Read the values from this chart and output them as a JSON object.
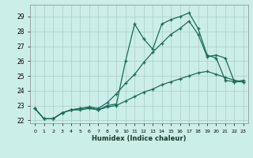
{
  "xlabel": "Humidex (Indice chaleur)",
  "background_color": "#cceee8",
  "grid_color": "#aaccc8",
  "line_color": "#1a6b5a",
  "xlim": [
    -0.5,
    23.5
  ],
  "ylim": [
    21.8,
    29.8
  ],
  "yticks": [
    22,
    23,
    24,
    25,
    26,
    27,
    28,
    29
  ],
  "xticks": [
    0,
    1,
    2,
    3,
    4,
    5,
    6,
    7,
    8,
    9,
    10,
    11,
    12,
    13,
    14,
    15,
    16,
    17,
    18,
    19,
    20,
    21,
    22,
    23
  ],
  "line1_x": [
    0,
    1,
    2,
    3,
    4,
    5,
    6,
    7,
    8,
    9,
    10,
    11,
    12,
    13,
    14,
    15,
    16,
    17,
    18,
    19,
    20,
    21,
    22,
    23
  ],
  "line1_y": [
    22.8,
    22.1,
    22.1,
    22.5,
    22.7,
    22.8,
    22.85,
    22.7,
    23.0,
    23.1,
    26.0,
    28.5,
    27.5,
    26.8,
    28.5,
    28.8,
    29.0,
    29.25,
    28.2,
    26.4,
    26.2,
    24.7,
    24.6,
    24.7
  ],
  "line2_x": [
    0,
    1,
    2,
    3,
    4,
    5,
    6,
    7,
    8,
    9,
    10,
    11,
    12,
    13,
    14,
    15,
    16,
    17,
    18,
    19,
    20,
    21,
    22,
    23
  ],
  "line2_y": [
    22.8,
    22.1,
    22.1,
    22.5,
    22.7,
    22.8,
    22.9,
    22.8,
    23.2,
    23.8,
    24.5,
    25.1,
    25.9,
    26.6,
    27.2,
    27.8,
    28.2,
    28.7,
    27.8,
    26.3,
    26.4,
    26.2,
    24.6,
    24.6
  ],
  "line3_x": [
    0,
    1,
    2,
    3,
    4,
    5,
    6,
    7,
    8,
    9,
    10,
    11,
    12,
    13,
    14,
    15,
    16,
    17,
    18,
    19,
    20,
    21,
    22,
    23
  ],
  "line3_y": [
    22.8,
    22.1,
    22.1,
    22.5,
    22.7,
    22.7,
    22.8,
    22.7,
    22.9,
    23.0,
    23.3,
    23.6,
    23.9,
    24.1,
    24.4,
    24.6,
    24.8,
    25.0,
    25.2,
    25.3,
    25.1,
    24.9,
    24.7,
    24.6
  ]
}
